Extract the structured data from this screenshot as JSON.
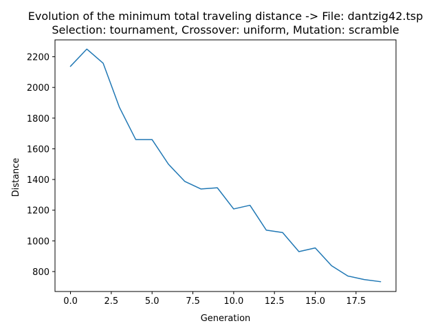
{
  "chart_data": {
    "type": "line",
    "title": "Evolution of the minimum total traveling distance -> File: dantzig42.tsp",
    "subtitle": "Selection: tournament, Crossover: uniform, Mutation: scramble",
    "xlabel": "Generation",
    "ylabel": "Distance",
    "xlim": [
      -0.95,
      19.95
    ],
    "ylim": [
      670,
      2310
    ],
    "x_ticks": [
      0.0,
      2.5,
      5.0,
      7.5,
      10.0,
      12.5,
      15.0,
      17.5
    ],
    "x_tick_labels": [
      "0.0",
      "2.5",
      "5.0",
      "7.5",
      "10.0",
      "12.5",
      "15.0",
      "17.5"
    ],
    "y_ticks": [
      800,
      1000,
      1200,
      1400,
      1600,
      1800,
      2000,
      2200
    ],
    "y_tick_labels": [
      "800",
      "1000",
      "1200",
      "1400",
      "1600",
      "1800",
      "2000",
      "2200"
    ],
    "grid": false,
    "line_color": "#1f77b4",
    "series": [
      {
        "x": [
          0,
          1,
          2,
          3,
          4,
          5,
          6,
          7,
          8,
          9,
          10,
          11,
          12,
          13,
          14,
          15,
          16,
          17,
          18,
          19
        ],
        "values": [
          2138,
          2250,
          2158,
          1870,
          1660,
          1660,
          1500,
          1388,
          1338,
          1346,
          1208,
          1232,
          1070,
          1054,
          930,
          954,
          838,
          771,
          748,
          734
        ]
      }
    ]
  }
}
